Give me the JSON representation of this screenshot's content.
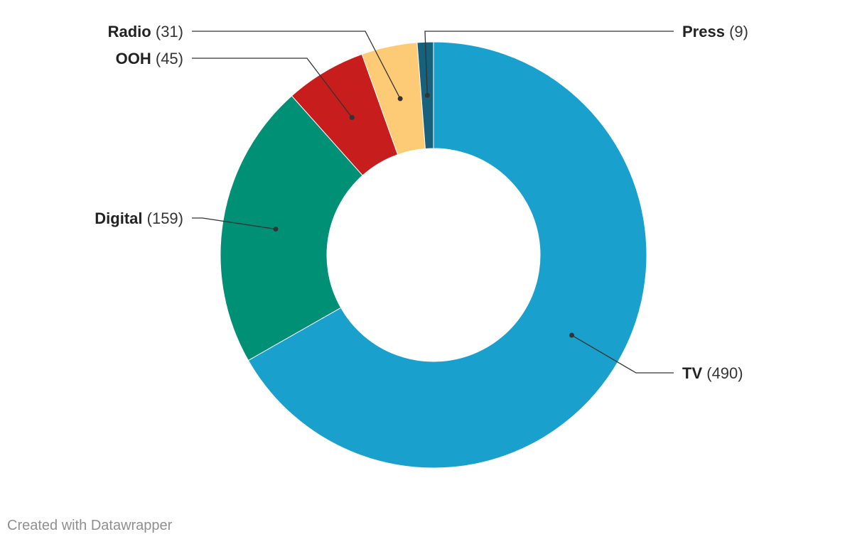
{
  "chart_data": {
    "type": "pie",
    "style": "donut",
    "title": "",
    "categories": [
      "TV",
      "Digital",
      "OOH",
      "Radio",
      "Press"
    ],
    "values": [
      490,
      159,
      45,
      31,
      9
    ],
    "colors": [
      "#1aa0cd",
      "#009076",
      "#c71e1d",
      "#fdca76",
      "#18617c"
    ],
    "labels": [
      {
        "name": "TV",
        "value_text": "(490)",
        "side": "right"
      },
      {
        "name": "Digital",
        "value_text": "(159)",
        "side": "left"
      },
      {
        "name": "OOH",
        "value_text": "(45)",
        "side": "left"
      },
      {
        "name": "Radio",
        "value_text": "(31)",
        "side": "left"
      },
      {
        "name": "Press",
        "value_text": "(9)",
        "side": "right"
      }
    ],
    "legend": "none"
  },
  "footer": {
    "credit": "Created with Datawrapper"
  }
}
